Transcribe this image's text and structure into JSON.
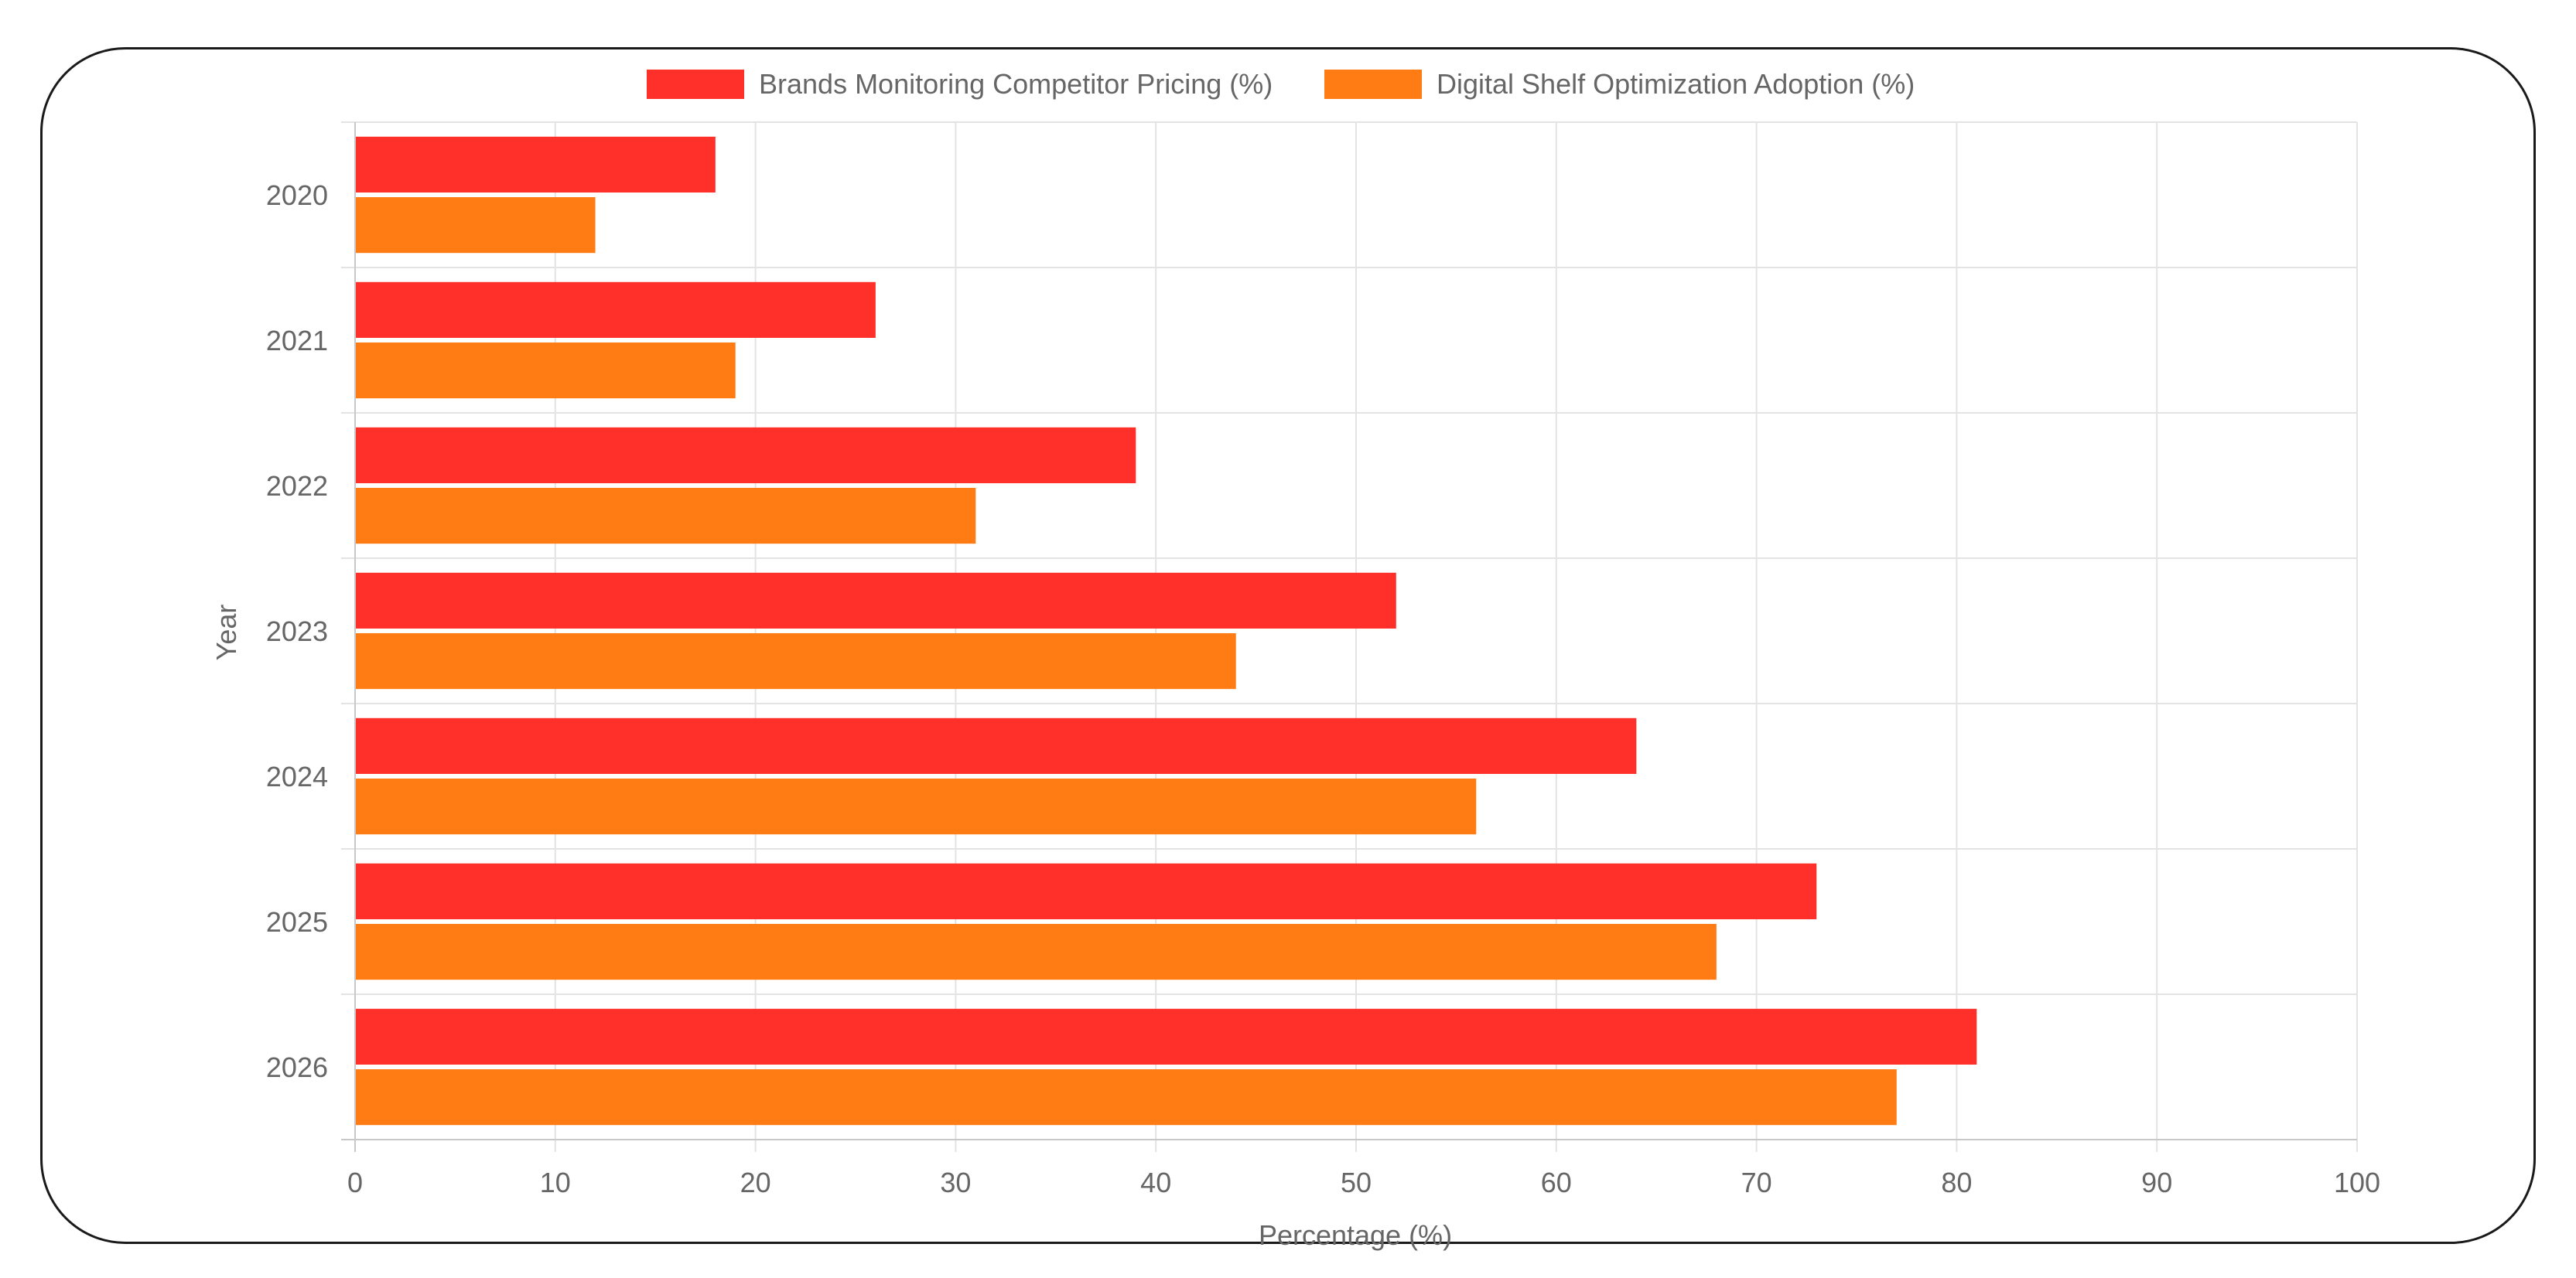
{
  "chart_data": {
    "type": "bar",
    "orientation": "horizontal",
    "categories": [
      "2020",
      "2021",
      "2022",
      "2023",
      "2024",
      "2025",
      "2026"
    ],
    "series": [
      {
        "name": "Brands Monitoring Competitor Pricing (%)",
        "color": "#ff2f2a",
        "values": [
          18,
          26,
          39,
          52,
          64,
          73,
          81
        ]
      },
      {
        "name": "Digital Shelf Optimization Adoption (%)",
        "color": "#ff7c14",
        "values": [
          12,
          19,
          31,
          44,
          56,
          68,
          77
        ]
      }
    ],
    "xlabel": "Percentage (%)",
    "ylabel": "Year",
    "xlim": [
      0,
      100
    ],
    "xticks": [
      "0",
      "10",
      "20",
      "30",
      "40",
      "50",
      "60",
      "70",
      "80",
      "90",
      "100"
    ],
    "grid": true,
    "legend_position": "top"
  }
}
